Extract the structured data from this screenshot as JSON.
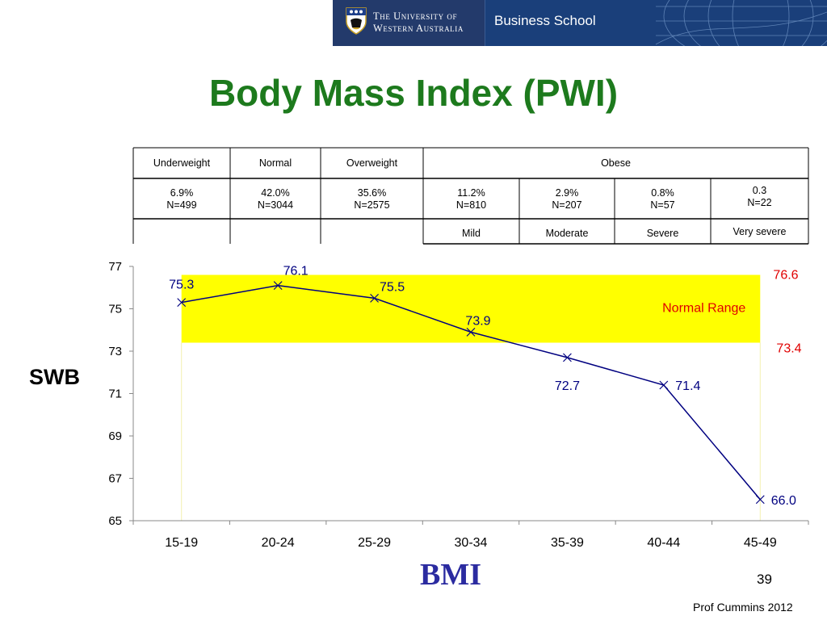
{
  "header": {
    "university_line1": "The University of",
    "university_line2": "Western Australia",
    "school": "Business School"
  },
  "slide": {
    "title": "Body Mass Index (PWI)",
    "ylabel_big": "SWB",
    "footer_label": "BMI",
    "page_number": "39",
    "author": "Prof Cummins 2012"
  },
  "table": {
    "categories": [
      "Underweight",
      "Normal",
      "Overweight",
      "Obese"
    ],
    "percent_row": [
      {
        "pct": "6.9%",
        "n": "N=499"
      },
      {
        "pct": "42.0%",
        "n": "N=3044"
      },
      {
        "pct": "35.6%",
        "n": "N=2575"
      },
      {
        "pct": "11.2%",
        "n": "N=810"
      },
      {
        "pct": "2.9%",
        "n": "N=207"
      },
      {
        "pct": "0.8%",
        "n": "N=57"
      },
      {
        "pct": "0.3",
        "n": "N=22"
      }
    ],
    "obese_subtypes": [
      "Mild",
      "Moderate",
      "Severe",
      "Very severe"
    ]
  },
  "chart_data": {
    "type": "line",
    "categories": [
      "15-19",
      "20-24",
      "25-29",
      "30-34",
      "35-39",
      "40-44",
      "45-49"
    ],
    "series": [
      {
        "values": [
          75.3,
          76.1,
          75.5,
          73.9,
          72.7,
          71.4,
          66.0
        ],
        "color": "#000080"
      }
    ],
    "data_labels": [
      "75.3",
      "76.1",
      "75.5",
      "73.9",
      "72.7",
      "71.4",
      "66.0"
    ],
    "ylim": [
      65,
      77
    ],
    "yticks": [
      65,
      67,
      69,
      71,
      73,
      75,
      77
    ],
    "normal_range": {
      "low": 73.4,
      "high": 76.6,
      "label": "Normal Range",
      "low_label": "73.4",
      "high_label": "76.6",
      "color": "#ffff00",
      "label_color": "#e00000"
    },
    "grid": false
  }
}
